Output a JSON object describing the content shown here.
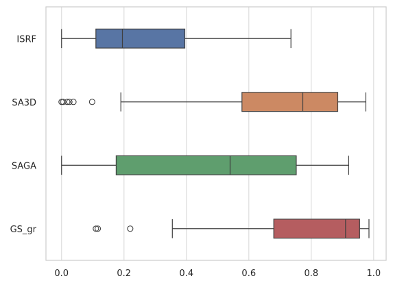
{
  "chart_data": {
    "type": "boxplot",
    "orientation": "horizontal",
    "title": "",
    "xlabel": "",
    "ylabel": "",
    "xlim": [
      -0.05,
      1.04
    ],
    "xticks": [
      0.0,
      0.2,
      0.4,
      0.6,
      0.8,
      1.0
    ],
    "xtick_labels": [
      "0.0",
      "0.2",
      "0.4",
      "0.6",
      "0.8",
      "1.0"
    ],
    "grid": "vertical",
    "categories": [
      "ISRF",
      "SA3D",
      "SAGA",
      "GS_gr"
    ],
    "boxes": [
      {
        "label": "ISRF",
        "color": "#5875a4",
        "whislo": 0.0,
        "q1": 0.11,
        "median": 0.195,
        "q3": 0.395,
        "whishi": 0.735,
        "fliers": []
      },
      {
        "label": "SA3D",
        "color": "#cc8963",
        "whislo": 0.19,
        "q1": 0.578,
        "median": 0.773,
        "q3": 0.885,
        "whishi": 0.975,
        "fliers": [
          0.0,
          0.005,
          0.018,
          0.025,
          0.038,
          0.098
        ]
      },
      {
        "label": "SAGA",
        "color": "#5f9e6e",
        "whislo": 0.0,
        "q1": 0.175,
        "median": 0.54,
        "q3": 0.752,
        "whishi": 0.92,
        "fliers": []
      },
      {
        "label": "GS_gr",
        "color": "#b55d60",
        "whislo": 0.355,
        "q1": 0.68,
        "median": 0.91,
        "q3": 0.955,
        "whishi": 0.985,
        "fliers": [
          0.11,
          0.116,
          0.22
        ]
      }
    ]
  }
}
